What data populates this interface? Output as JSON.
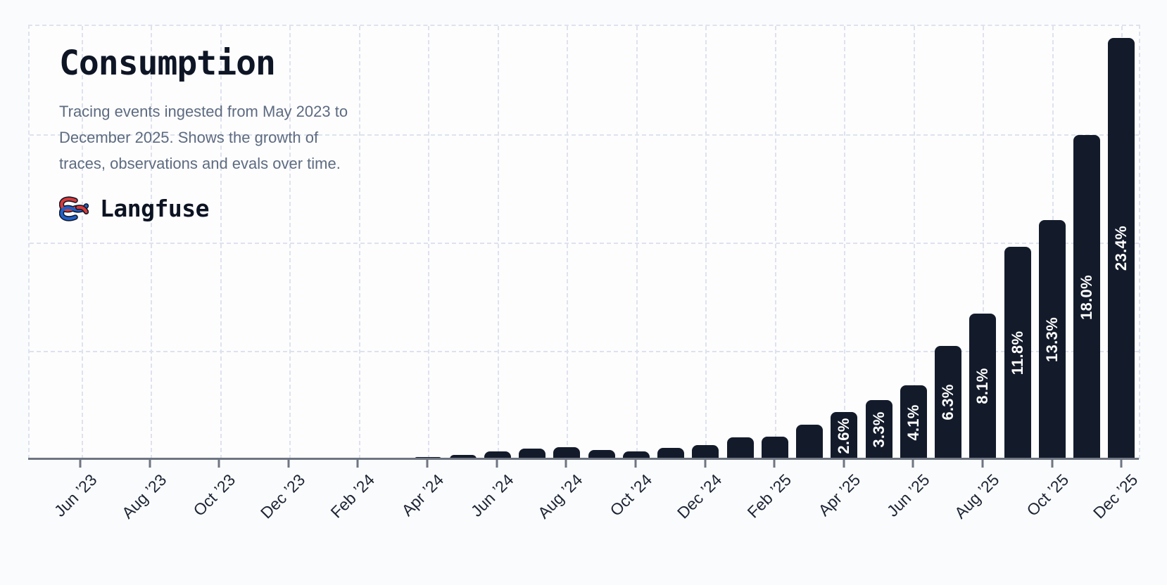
{
  "header": {
    "title": "Consumption",
    "subtitle_lines": [
      "Tracing events ingested from May 2023 to",
      "December 2025. Shows the growth of",
      "traces, observations and evals over time."
    ],
    "subtitle_full": "Tracing events ingested from May 2023 to December 2025. Shows the growth of traces, observations and evals over time.",
    "brand": "Langfuse"
  },
  "chart_data": {
    "type": "bar",
    "title": "Consumption",
    "x": [
      "May ’23",
      "Jun ’23",
      "Jul ’23",
      "Aug ’23",
      "Sep ’23",
      "Oct ’23",
      "Nov ’23",
      "Dec ’23",
      "Jan ’24",
      "Feb ’24",
      "Mar ’24",
      "Apr ’24",
      "May ’24",
      "Jun ’24",
      "Jul ’24",
      "Aug ’24",
      "Sep ’24",
      "Oct ’24",
      "Nov ’24",
      "Dec ’24",
      "Jan ’25",
      "Feb ’25",
      "Mar ’25",
      "Apr ’25",
      "May ’25",
      "Jun ’25",
      "Jul ’25",
      "Aug ’25",
      "Sep ’25",
      "Oct ’25",
      "Nov ’25",
      "Dec ’25"
    ],
    "values": [
      0.01,
      0.01,
      0.02,
      0.02,
      0.02,
      0.03,
      0.03,
      0.04,
      0.04,
      0.05,
      0.06,
      0.1,
      0.24,
      0.43,
      0.58,
      0.65,
      0.5,
      0.43,
      0.62,
      0.78,
      1.2,
      1.25,
      1.9,
      2.6,
      3.3,
      4.1,
      6.3,
      8.1,
      11.8,
      13.3,
      18.0,
      23.4
    ],
    "bar_labels": [
      "",
      "",
      "",
      "",
      "",
      "",
      "",
      "",
      "",
      "",
      "",
      "",
      "",
      "",
      "",
      "",
      "",
      "",
      "",
      "",
      "",
      "",
      "",
      "2.6%",
      "3.3%",
      "4.1%",
      "6.3%",
      "8.1%",
      "11.8%",
      "13.3%",
      "18.0%",
      "23.4%"
    ],
    "x_tick_labels": [
      "Jun ’23",
      "Aug ’23",
      "Oct ’23",
      "Dec ’23",
      "Feb ’24",
      "Apr ’24",
      "Jun ’24",
      "Aug ’24",
      "Oct ’24",
      "Dec ’24",
      "Feb ’25",
      "Apr ’25",
      "Jun ’25",
      "Aug ’25",
      "Oct ’25",
      "Dec ’25"
    ],
    "x_tick_every": 2,
    "ylim": [
      0,
      24.06
    ],
    "y_axis_visible": false,
    "grid": "dashed",
    "legend": "none",
    "x_label_rotation_deg": -45,
    "bar_value_label_rotation_deg": -90
  },
  "colors": {
    "bar": "#131b2b",
    "bar_label": "#ffffff",
    "grid": "#dde2ee",
    "axis": "#6f7682",
    "title": "#0e1626",
    "subtitle": "#5d6b80",
    "tick_label": "#1c2434",
    "background_outer": "#fafbfc",
    "background_plot": "#fdfdfe",
    "logo_red": "#d83b3b",
    "logo_blue": "#2160c9",
    "logo_outline": "#101828"
  }
}
